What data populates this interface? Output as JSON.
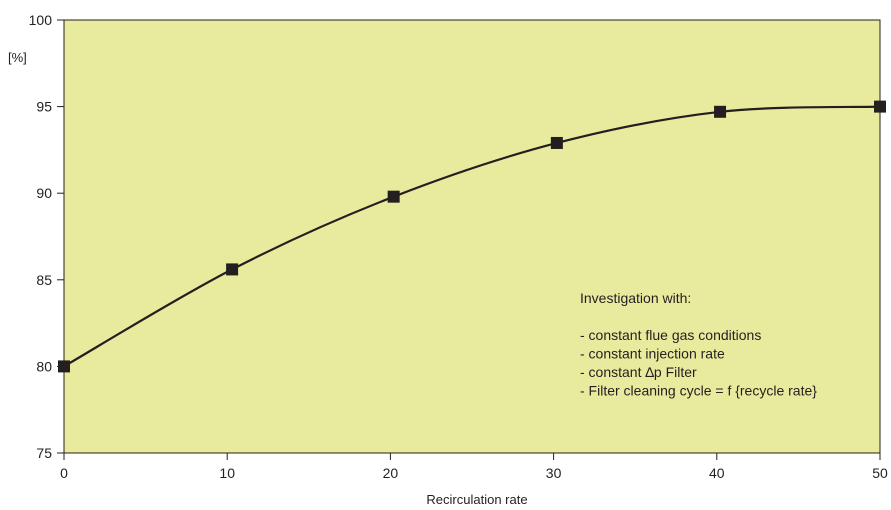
{
  "chart_data": {
    "type": "line",
    "title": "",
    "xlabel": "Recirculation rate",
    "ylabel": "[%]",
    "xlim": [
      0,
      50
    ],
    "ylim": [
      75,
      100
    ],
    "x_ticks": [
      0,
      10,
      20,
      30,
      40,
      50
    ],
    "y_ticks": [
      75,
      80,
      85,
      90,
      95,
      100
    ],
    "grid": false,
    "legend": "none",
    "series": [
      {
        "x": [
          0,
          10.3,
          20.2,
          30.2,
          40.2,
          50
        ],
        "y": [
          80.0,
          85.6,
          89.8,
          92.9,
          94.7,
          95.0
        ],
        "marker": "square",
        "smooth": true
      }
    ],
    "annotation": {
      "lines": [
        "Investigation with:",
        "",
        "- constant flue gas conditions",
        "- constant injection rate",
        "- constant ∆p Filter",
        "- Filter cleaning cycle = f {recycle rate}"
      ]
    },
    "colors": {
      "plot_background": "#e8eb9d",
      "line": "#231f20",
      "marker": "#231f20",
      "axis": "#231f20"
    }
  }
}
